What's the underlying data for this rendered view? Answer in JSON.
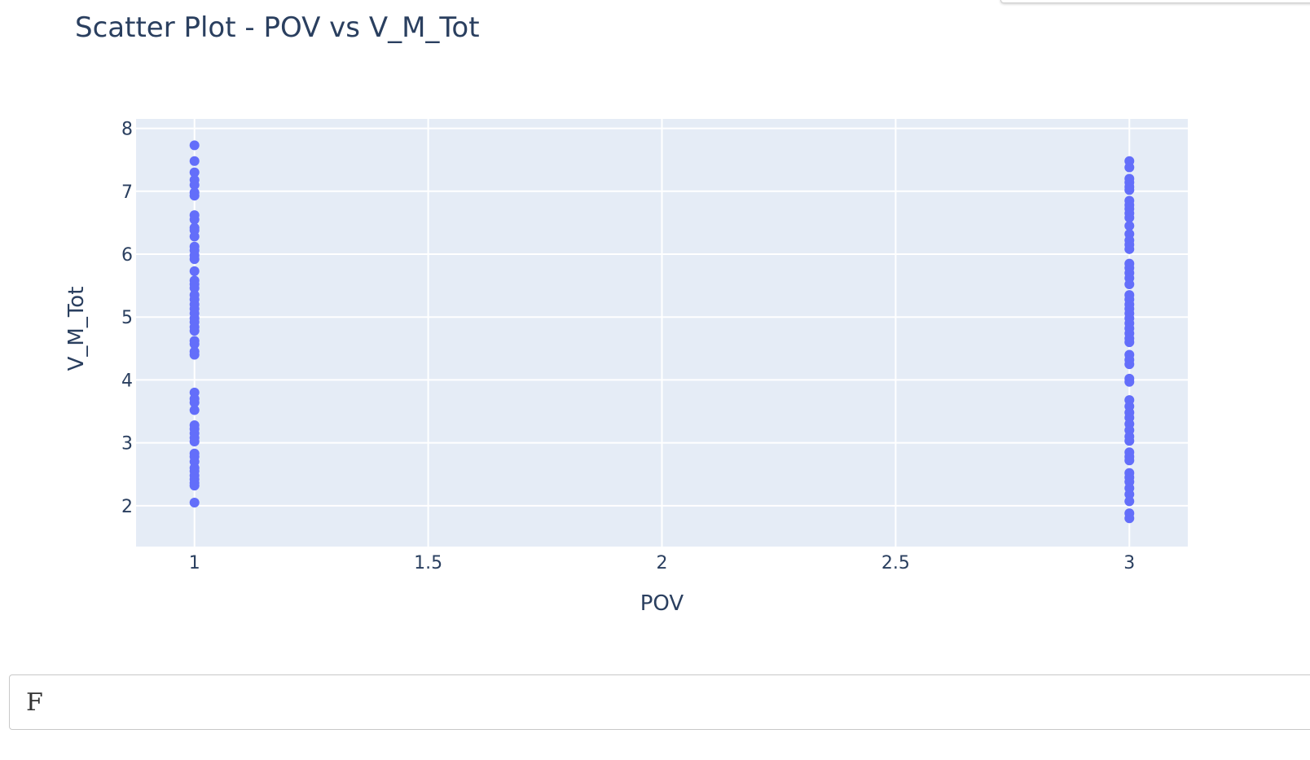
{
  "title": "Scatter Plot - POV vs V_M_Tot",
  "input": {
    "text": "F"
  },
  "colors": {
    "marker": "#636efa",
    "plot_bg": "#e5ecf6",
    "text": "#2a3f5f",
    "grid": "#ffffff"
  },
  "chart_data": {
    "type": "scatter",
    "title": "Scatter Plot - POV vs V_M_Tot",
    "xlabel": "POV",
    "ylabel": "V_M_Tot",
    "xlim": [
      0.875,
      3.125
    ],
    "ylim": [
      1.35,
      8.15
    ],
    "xticks": [
      1,
      1.5,
      2,
      2.5,
      3
    ],
    "xtick_labels": [
      "1",
      "1.5",
      "2",
      "2.5",
      "3"
    ],
    "yticks": [
      2,
      3,
      4,
      5,
      6,
      7,
      8
    ],
    "ytick_labels": [
      "2",
      "3",
      "4",
      "5",
      "6",
      "7",
      "8"
    ],
    "grid": true,
    "series": [
      {
        "x": 1,
        "y": [
          7.73,
          7.48,
          7.3,
          7.18,
          7.1,
          6.98,
          6.93,
          6.62,
          6.55,
          6.42,
          6.38,
          6.28,
          6.12,
          6.06,
          5.98,
          5.92,
          5.73,
          5.58,
          5.52,
          5.46,
          5.35,
          5.28,
          5.2,
          5.13,
          5.06,
          4.98,
          4.92,
          4.84,
          4.78,
          4.62,
          4.57,
          4.45,
          4.4,
          3.8,
          3.7,
          3.64,
          3.52,
          3.28,
          3.22,
          3.15,
          3.08,
          3.02,
          2.83,
          2.78,
          2.7,
          2.6,
          2.55,
          2.48,
          2.42,
          2.36,
          2.32,
          2.05
        ]
      },
      {
        "x": 3,
        "y": [
          7.48,
          7.38,
          7.2,
          7.14,
          7.07,
          7.02,
          6.85,
          6.78,
          6.72,
          6.65,
          6.58,
          6.45,
          6.32,
          6.22,
          6.15,
          6.08,
          5.85,
          5.78,
          5.7,
          5.62,
          5.52,
          5.35,
          5.28,
          5.2,
          5.13,
          5.06,
          4.98,
          4.9,
          4.82,
          4.74,
          4.66,
          4.6,
          4.4,
          4.32,
          4.25,
          4.02,
          3.97,
          3.68,
          3.58,
          3.48,
          3.4,
          3.3,
          3.2,
          3.1,
          3.03,
          2.85,
          2.78,
          2.72,
          2.52,
          2.45,
          2.38,
          2.28,
          2.18,
          2.07,
          1.88,
          1.8
        ]
      }
    ]
  }
}
